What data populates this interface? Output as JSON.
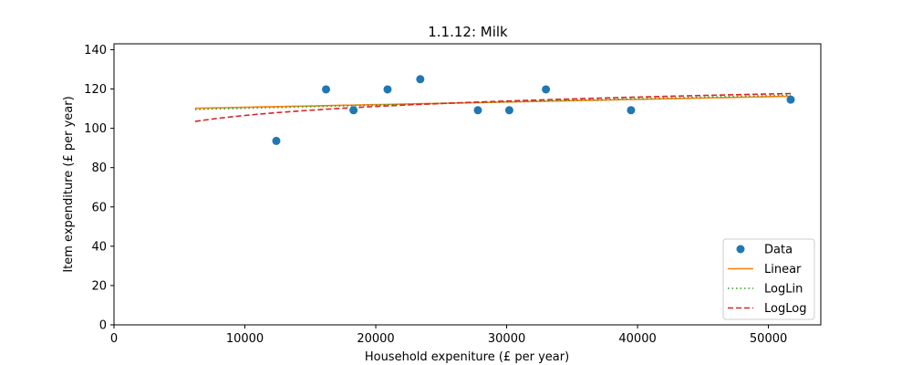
{
  "chart_data": {
    "type": "scatter",
    "title": "1.1.12: Milk",
    "xlabel": "Household expeniture (£ per year)",
    "ylabel": "Item expenditure (£ per year)",
    "xlim": [
      0,
      54000
    ],
    "ylim": [
      0,
      143
    ],
    "xticks": [
      0,
      10000,
      20000,
      30000,
      40000,
      50000
    ],
    "yticks": [
      0,
      20,
      40,
      60,
      80,
      100,
      120,
      140
    ],
    "legend_position": "lower-right",
    "grid": false,
    "series": [
      {
        "name": "Data",
        "kind": "points",
        "color": "#1f77b4",
        "x": [
          12400,
          16200,
          18300,
          20900,
          23400,
          27800,
          30200,
          33000,
          39500,
          51700
        ],
        "y": [
          93.6,
          119.8,
          109.2,
          119.8,
          125,
          109.2,
          109.2,
          119.8,
          109.2,
          114.6
        ]
      },
      {
        "name": "Linear",
        "kind": "line",
        "style": "solid",
        "color": "#ff7f0e",
        "x": [
          6200,
          51700
        ],
        "y": [
          110.2,
          116.3
        ]
      },
      {
        "name": "LogLin",
        "kind": "line",
        "style": "dotted",
        "color": "#2ca02c",
        "x": [
          6200,
          51700
        ],
        "y": [
          109.6,
          116.9
        ]
      },
      {
        "name": "LogLog",
        "kind": "line",
        "style": "dashed",
        "color": "#d62728",
        "curve": "power",
        "x": [
          6200,
          51700
        ],
        "y": [
          103.5,
          117.7
        ]
      }
    ]
  }
}
